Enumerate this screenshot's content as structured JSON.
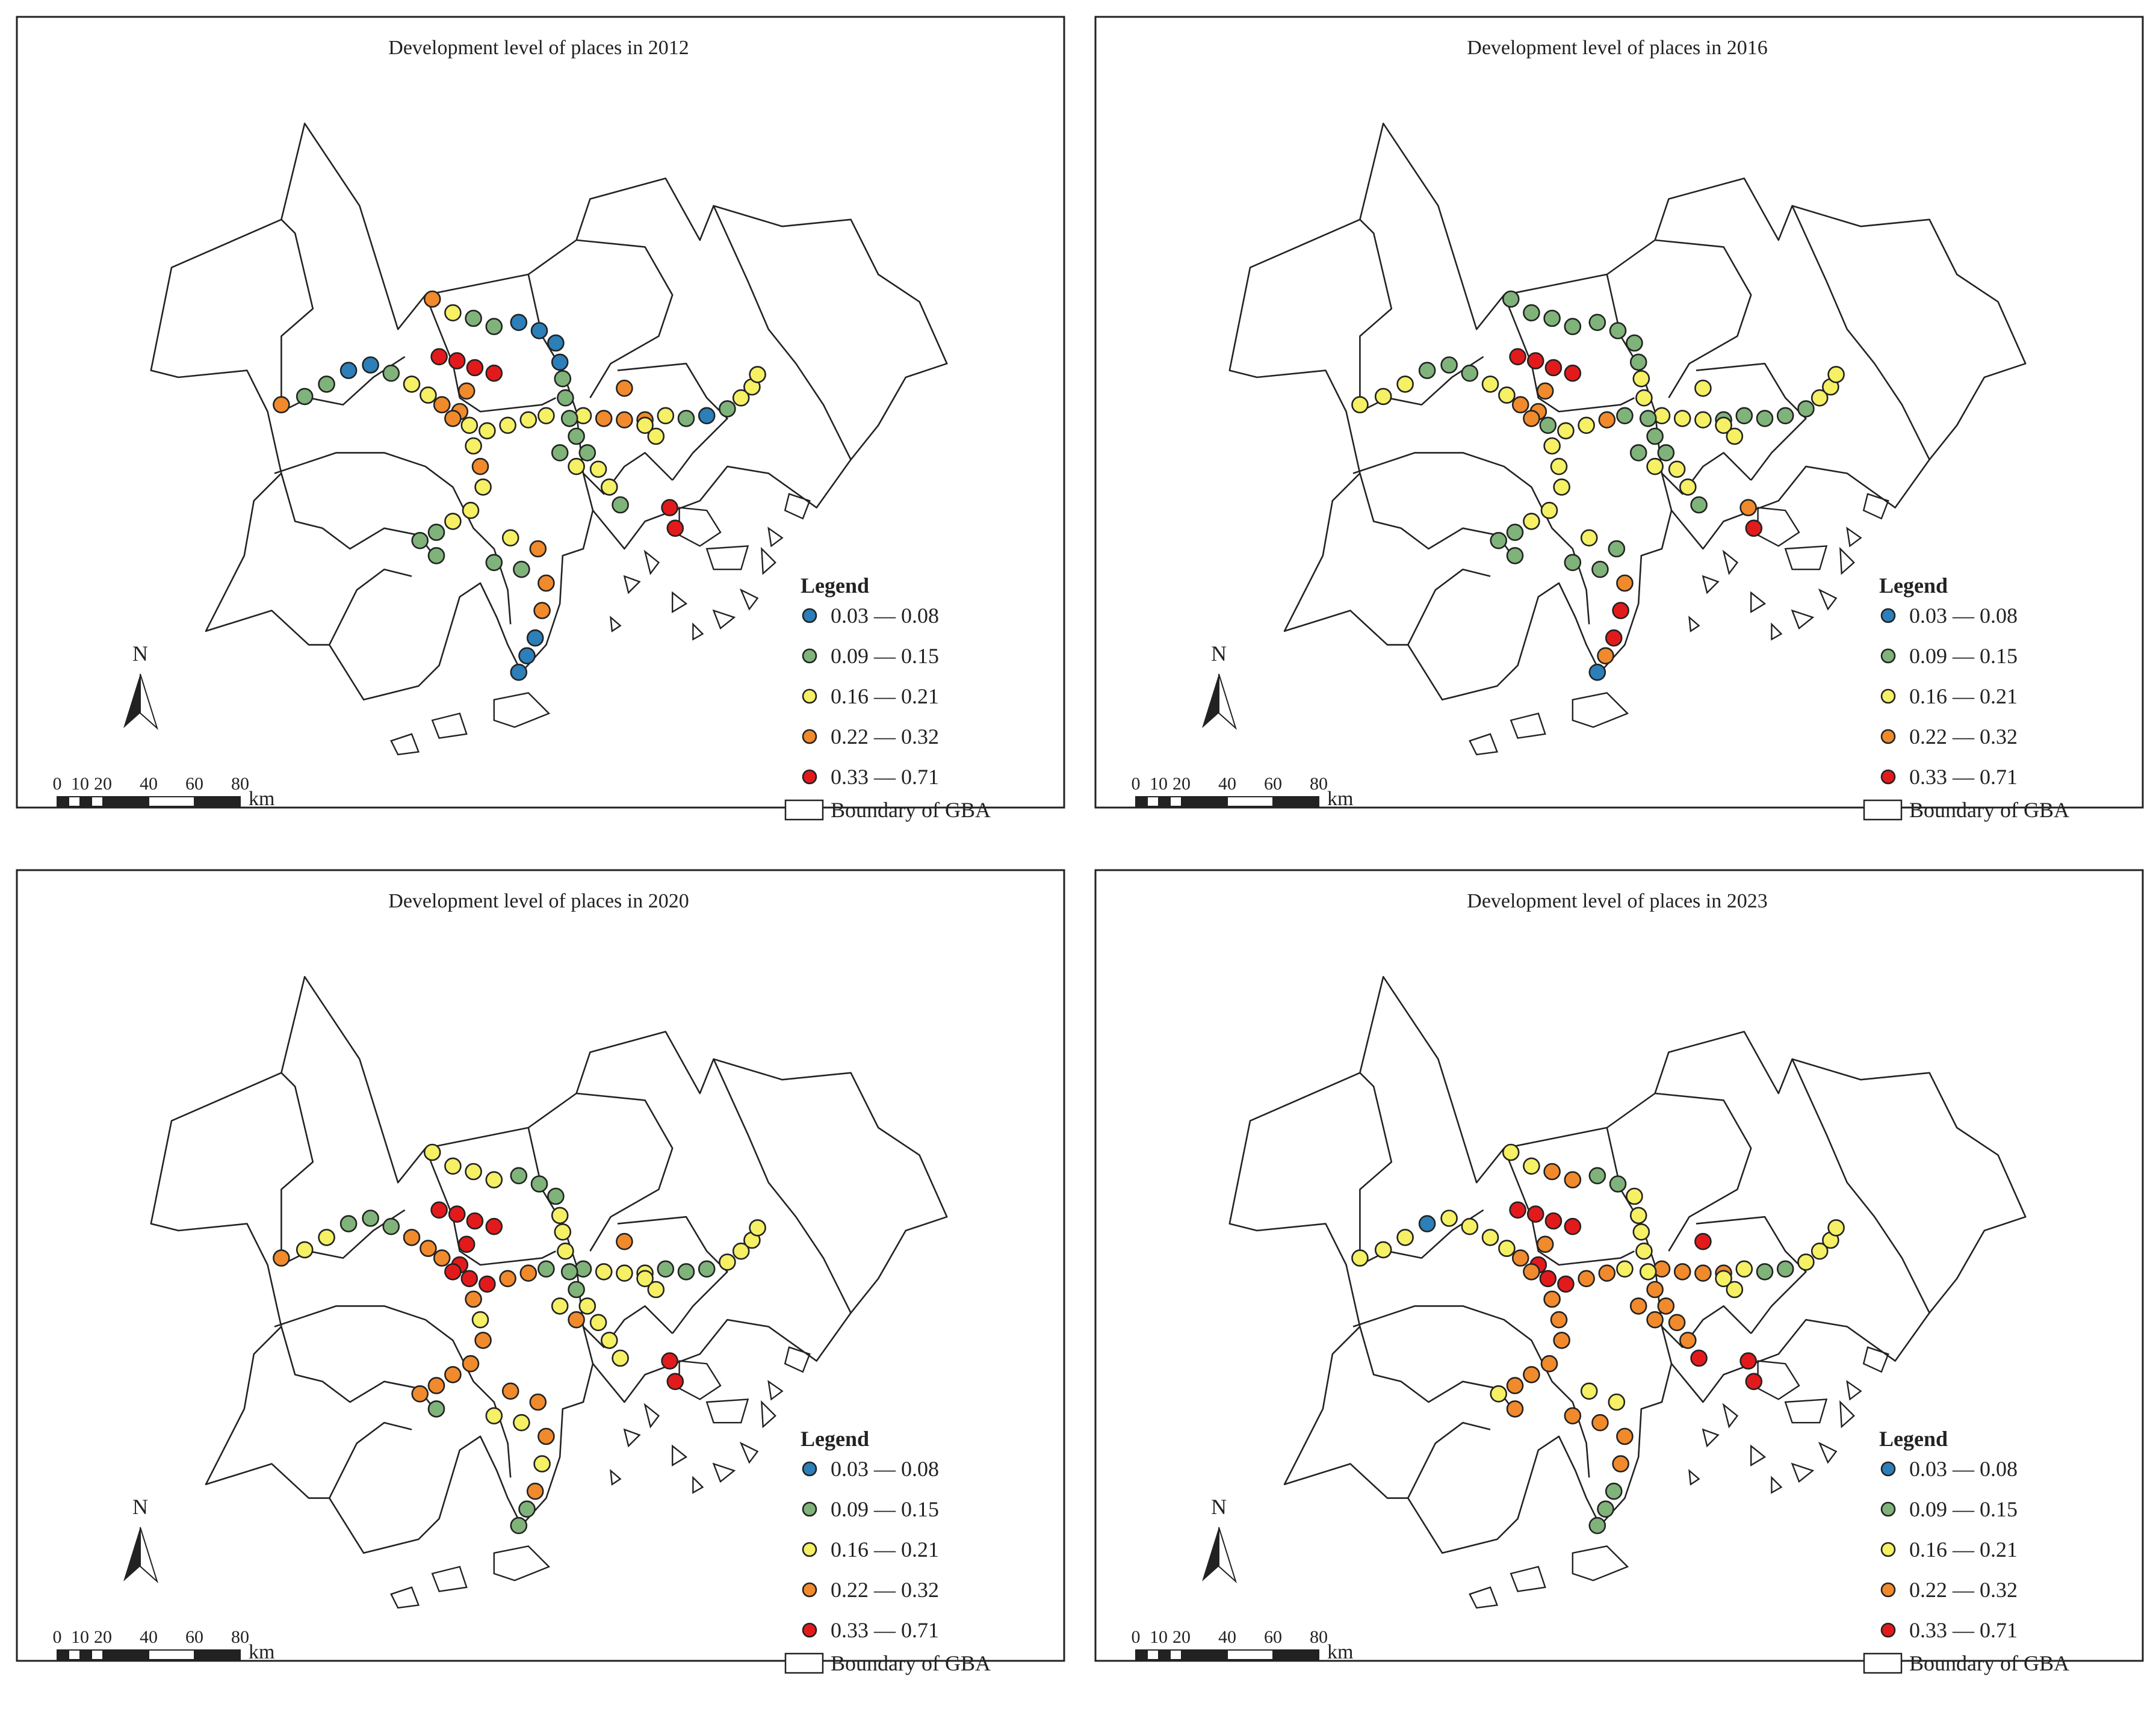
{
  "legend": {
    "title": "Legend",
    "classes": [
      {
        "label": "0.03 — 0.08",
        "color": "#2c7fb8"
      },
      {
        "label": "0.09 — 0.15",
        "color": "#7fb37a"
      },
      {
        "label": "0.16 — 0.21",
        "color": "#f5f064"
      },
      {
        "label": "0.22 — 0.32",
        "color": "#f08a2c"
      },
      {
        "label": "0.33 — 0.71",
        "color": "#e31a1c"
      }
    ],
    "boundary_label": "Boundary of GBA"
  },
  "north_arrow": "N",
  "scale_bar": {
    "ticks": [
      "0",
      "10",
      "20",
      "40",
      "60",
      "80"
    ],
    "unit": "km"
  },
  "maps": [
    {
      "title": "Development level of places in 2012",
      "year": "2012"
    },
    {
      "title": "Development level of places in 2016",
      "year": "2016"
    },
    {
      "title": "Development level of places in 2020",
      "year": "2020"
    },
    {
      "title": "Development level of places in 2023",
      "year": "2023"
    }
  ]
}
